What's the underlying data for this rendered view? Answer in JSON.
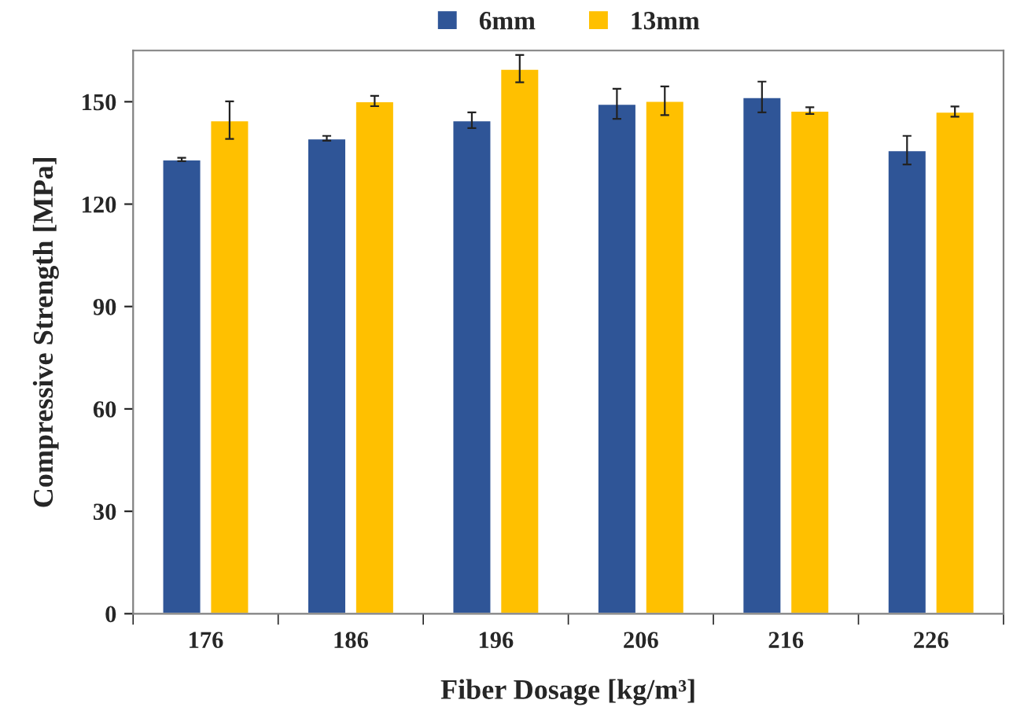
{
  "chart_data": {
    "type": "bar",
    "xlabel": "Fiber Dosage [kg/m³]",
    "ylabel": "Compressive Strength [MPa]",
    "categories": [
      "176",
      "186",
      "196",
      "206",
      "216",
      "226"
    ],
    "series": [
      {
        "name": "6mm",
        "color": "#2f5597",
        "values": [
          133.1,
          139.3,
          144.6,
          149.4,
          151.4,
          135.8
        ],
        "errors": [
          0.5,
          0.7,
          2.3,
          4.4,
          4.5,
          4.2
        ]
      },
      {
        "name": "13mm",
        "color": "#ffc000",
        "values": [
          144.6,
          150.2,
          159.7,
          150.3,
          147.4,
          147.1
        ],
        "errors": [
          5.5,
          1.5,
          4.0,
          4.2,
          1.0,
          1.5
        ]
      }
    ],
    "ylim": [
      0,
      165
    ],
    "yticks": [
      0,
      30,
      60,
      90,
      120,
      150
    ],
    "grid": false,
    "legend": "top"
  }
}
